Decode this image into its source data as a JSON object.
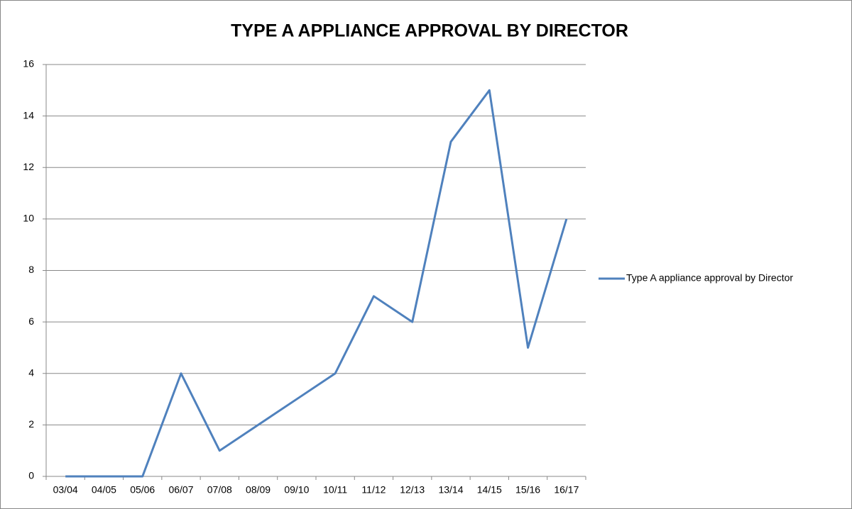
{
  "chart_data": {
    "type": "line",
    "title": "TYPE A APPLIANCE APPROVAL BY DIRECTOR",
    "categories": [
      "03/04",
      "04/05",
      "05/06",
      "06/07",
      "07/08",
      "08/09",
      "09/10",
      "10/11",
      "11/12",
      "12/13",
      "13/14",
      "14/15",
      "15/16",
      "16/17"
    ],
    "series": [
      {
        "name": "Type A appliance approval by Director",
        "color": "#4f81bd",
        "values": [
          0,
          0,
          0,
          4,
          1,
          2,
          3,
          4,
          7,
          6,
          13,
          15,
          5,
          10
        ]
      }
    ],
    "ylim": [
      0,
      16
    ],
    "yticks": [
      0,
      2,
      4,
      6,
      8,
      10,
      12,
      14,
      16
    ],
    "grid": true,
    "legend": "right"
  }
}
